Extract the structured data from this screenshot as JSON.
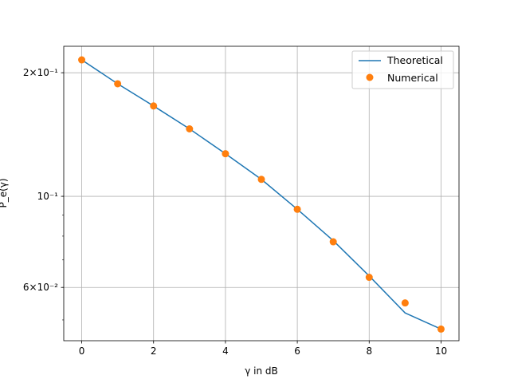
{
  "chart_data": {
    "type": "line",
    "title": "",
    "xlabel": "γ in dB",
    "ylabel": "P_e(γ)",
    "y_scale": "log",
    "xlim": [
      -0.5,
      10.5
    ],
    "ylim": [
      0.0445,
      0.232
    ],
    "grid": true,
    "x_ticks": [
      0,
      2,
      4,
      6,
      8,
      10
    ],
    "y_ticks": [
      {
        "value": 0.2,
        "label": "2×10⁻¹"
      },
      {
        "value": 0.1,
        "label": "10⁻¹"
      },
      {
        "value": 0.06,
        "label": "6×10⁻²"
      }
    ],
    "legend_position": "upper right",
    "series": [
      {
        "name": "Theoretical",
        "kind": "line",
        "color": "#1f77b4",
        "x": [
          0,
          1,
          2,
          3,
          4,
          5,
          6,
          7,
          8,
          9,
          10
        ],
        "y": [
          0.215,
          0.188,
          0.166,
          0.146,
          0.127,
          0.11,
          0.093,
          0.078,
          0.064,
          0.052,
          0.0475
        ]
      },
      {
        "name": "Numerical",
        "kind": "scatter",
        "color": "#ff7f0e",
        "x": [
          0,
          1,
          2,
          3,
          4,
          5,
          6,
          7,
          8,
          9,
          10
        ],
        "y": [
          0.215,
          0.188,
          0.166,
          0.146,
          0.127,
          0.11,
          0.093,
          0.0775,
          0.0635,
          0.055,
          0.0475
        ]
      }
    ]
  }
}
